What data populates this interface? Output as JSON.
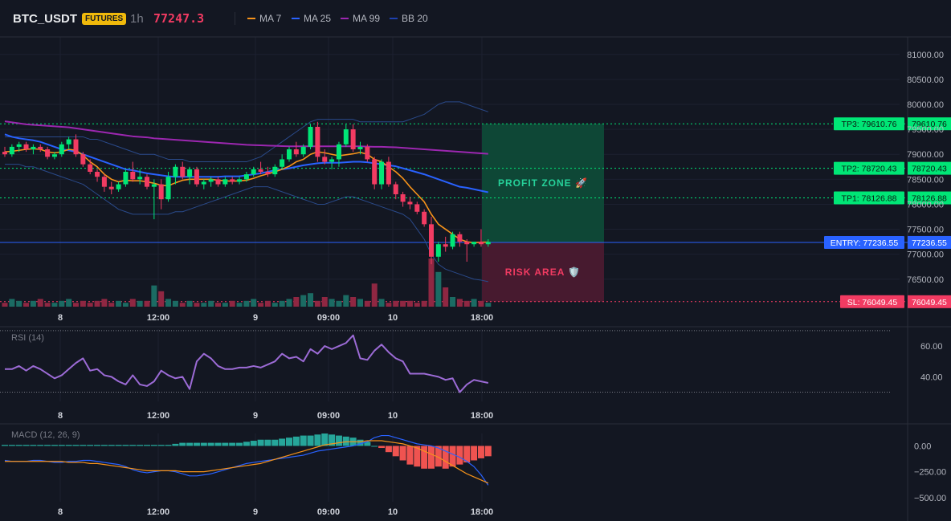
{
  "header": {
    "symbol": "BTC_USDT",
    "badge": "FUTURES",
    "timeframe": "1h",
    "last_price": "77247.3",
    "indicators": [
      {
        "label": "MA 7",
        "color": "#f7931a"
      },
      {
        "label": "MA 25",
        "color": "#2962ff"
      },
      {
        "label": "MA 99",
        "color": "#9c27b0"
      },
      {
        "label": "BB 20",
        "color": "#1e3a8a"
      }
    ]
  },
  "colors": {
    "background": "#131722",
    "bull": "#26a69a",
    "bull_bright": "#00e676",
    "bear": "#f23b62",
    "profit_zone": "#0f5c3f",
    "risk_zone": "#5c1a34",
    "entry": "#2962ff"
  },
  "chart_data": {
    "type": "candlestick",
    "price_axis": {
      "ticks": [
        "81000.00",
        "80500.00",
        "80000.00",
        "79500.00",
        "79000.00",
        "78500.00",
        "78000.00",
        "77500.00",
        "77000.00",
        "76500.00"
      ],
      "ylim": [
        75950,
        81350
      ]
    },
    "x_axis_labels": [
      "8",
      "12:00",
      "9",
      "09:00",
      "10",
      "18:00"
    ],
    "candles": [
      {
        "o": 79050,
        "h": 79150,
        "l": 78950,
        "c": 79000
      },
      {
        "o": 79000,
        "h": 79200,
        "l": 78950,
        "c": 79150
      },
      {
        "o": 79150,
        "h": 79250,
        "l": 79050,
        "c": 79200
      },
      {
        "o": 79200,
        "h": 79250,
        "l": 79050,
        "c": 79100
      },
      {
        "o": 79100,
        "h": 79200,
        "l": 79000,
        "c": 79150
      },
      {
        "o": 79150,
        "h": 79200,
        "l": 79050,
        "c": 79100
      },
      {
        "o": 79100,
        "h": 79150,
        "l": 78900,
        "c": 78950
      },
      {
        "o": 78950,
        "h": 79050,
        "l": 78900,
        "c": 79000
      },
      {
        "o": 79000,
        "h": 79250,
        "l": 78950,
        "c": 79200
      },
      {
        "o": 79200,
        "h": 79350,
        "l": 79100,
        "c": 79300
      },
      {
        "o": 79300,
        "h": 79400,
        "l": 78950,
        "c": 79000
      },
      {
        "o": 79000,
        "h": 79050,
        "l": 78750,
        "c": 78800
      },
      {
        "o": 78800,
        "h": 78900,
        "l": 78600,
        "c": 78650
      },
      {
        "o": 78650,
        "h": 78700,
        "l": 78450,
        "c": 78550
      },
      {
        "o": 78550,
        "h": 78600,
        "l": 78250,
        "c": 78350
      },
      {
        "o": 78350,
        "h": 78450,
        "l": 78200,
        "c": 78300
      },
      {
        "o": 78300,
        "h": 78450,
        "l": 78250,
        "c": 78400
      },
      {
        "o": 78400,
        "h": 78700,
        "l": 78350,
        "c": 78650
      },
      {
        "o": 78650,
        "h": 78850,
        "l": 78450,
        "c": 78500
      },
      {
        "o": 78500,
        "h": 78700,
        "l": 78400,
        "c": 78550
      },
      {
        "o": 78550,
        "h": 78600,
        "l": 78300,
        "c": 78350
      },
      {
        "o": 78350,
        "h": 78500,
        "l": 77700,
        "c": 78400
      },
      {
        "o": 78400,
        "h": 78500,
        "l": 77900,
        "c": 78100
      },
      {
        "o": 78100,
        "h": 78650,
        "l": 78050,
        "c": 78550
      },
      {
        "o": 78550,
        "h": 78800,
        "l": 78400,
        "c": 78750
      },
      {
        "o": 78750,
        "h": 78850,
        "l": 78500,
        "c": 78550
      },
      {
        "o": 78550,
        "h": 78750,
        "l": 78400,
        "c": 78700
      },
      {
        "o": 78700,
        "h": 78750,
        "l": 78350,
        "c": 78400
      },
      {
        "o": 78400,
        "h": 78500,
        "l": 78300,
        "c": 78450
      },
      {
        "o": 78450,
        "h": 78550,
        "l": 78350,
        "c": 78500
      },
      {
        "o": 78500,
        "h": 78550,
        "l": 78350,
        "c": 78400
      },
      {
        "o": 78400,
        "h": 78550,
        "l": 78350,
        "c": 78500
      },
      {
        "o": 78500,
        "h": 78550,
        "l": 78400,
        "c": 78450
      },
      {
        "o": 78450,
        "h": 78550,
        "l": 78400,
        "c": 78500
      },
      {
        "o": 78500,
        "h": 78650,
        "l": 78450,
        "c": 78600
      },
      {
        "o": 78600,
        "h": 78750,
        "l": 78550,
        "c": 78700
      },
      {
        "o": 78700,
        "h": 78850,
        "l": 78600,
        "c": 78650
      },
      {
        "o": 78650,
        "h": 78750,
        "l": 78550,
        "c": 78600
      },
      {
        "o": 78600,
        "h": 78800,
        "l": 78550,
        "c": 78750
      },
      {
        "o": 78750,
        "h": 79000,
        "l": 78700,
        "c": 78900
      },
      {
        "o": 78900,
        "h": 79150,
        "l": 78850,
        "c": 79100
      },
      {
        "o": 79100,
        "h": 79250,
        "l": 78950,
        "c": 79000
      },
      {
        "o": 79000,
        "h": 79200,
        "l": 78950,
        "c": 79150
      },
      {
        "o": 79150,
        "h": 79600,
        "l": 79100,
        "c": 79550
      },
      {
        "o": 79550,
        "h": 79650,
        "l": 78850,
        "c": 78950
      },
      {
        "o": 78950,
        "h": 79100,
        "l": 78800,
        "c": 78850
      },
      {
        "o": 78850,
        "h": 78950,
        "l": 78700,
        "c": 78900
      },
      {
        "o": 78900,
        "h": 79250,
        "l": 78750,
        "c": 79200
      },
      {
        "o": 79200,
        "h": 79600,
        "l": 79150,
        "c": 79500
      },
      {
        "o": 79500,
        "h": 79600,
        "l": 79050,
        "c": 79100
      },
      {
        "o": 79100,
        "h": 79250,
        "l": 79000,
        "c": 79150
      },
      {
        "o": 79150,
        "h": 79200,
        "l": 78850,
        "c": 78900
      },
      {
        "o": 78900,
        "h": 78950,
        "l": 78300,
        "c": 78400
      },
      {
        "o": 78400,
        "h": 78900,
        "l": 78300,
        "c": 78850
      },
      {
        "o": 78850,
        "h": 78950,
        "l": 78350,
        "c": 78400
      },
      {
        "o": 78400,
        "h": 78450,
        "l": 78100,
        "c": 78200
      },
      {
        "o": 78200,
        "h": 78250,
        "l": 77950,
        "c": 78050
      },
      {
        "o": 78050,
        "h": 78150,
        "l": 77900,
        "c": 78000
      },
      {
        "o": 78000,
        "h": 78050,
        "l": 77800,
        "c": 77850
      },
      {
        "o": 77850,
        "h": 77900,
        "l": 77550,
        "c": 77600
      },
      {
        "o": 77600,
        "h": 77750,
        "l": 76800,
        "c": 76950
      },
      {
        "o": 76950,
        "h": 77250,
        "l": 76850,
        "c": 77200
      },
      {
        "o": 77200,
        "h": 77350,
        "l": 77050,
        "c": 77150
      },
      {
        "o": 77150,
        "h": 77450,
        "l": 77100,
        "c": 77400
      },
      {
        "o": 77400,
        "h": 77450,
        "l": 77150,
        "c": 77250
      },
      {
        "o": 77250,
        "h": 77300,
        "l": 76850,
        "c": 77200
      },
      {
        "o": 77200,
        "h": 77250,
        "l": 77150,
        "c": 77250
      },
      {
        "o": 77250,
        "h": 77500,
        "l": 77150,
        "c": 77200
      },
      {
        "o": 77200,
        "h": 77300,
        "l": 77150,
        "c": 77247
      }
    ],
    "volumes": [
      2,
      4,
      3,
      2,
      3,
      4,
      2,
      2,
      3,
      4,
      2,
      3,
      2,
      3,
      4,
      2,
      3,
      2,
      4,
      3,
      3,
      11,
      8,
      4,
      3,
      2,
      3,
      2,
      2,
      3,
      2,
      2,
      3,
      2,
      3,
      4,
      2,
      3,
      2,
      3,
      4,
      5,
      6,
      7,
      3,
      5,
      4,
      3,
      6,
      5,
      4,
      3,
      12,
      4,
      2,
      3,
      3,
      3,
      2,
      3,
      25,
      18,
      10,
      5,
      4,
      3,
      4,
      3,
      2
    ],
    "ma7": [
      79050,
      79060,
      79080,
      79100,
      79110,
      79100,
      79050,
      79030,
      79050,
      79100,
      79080,
      78980,
      78850,
      78750,
      78600,
      78500,
      78450,
      78480,
      78470,
      78470,
      78450,
      78420,
      78380,
      78370,
      78430,
      78480,
      78500,
      78500,
      78500,
      78500,
      78480,
      78470,
      78460,
      78470,
      78480,
      78520,
      78570,
      78610,
      78650,
      78700,
      78760,
      78850,
      78900,
      79000,
      79050,
      79030,
      79000,
      78970,
      78990,
      79010,
      79040,
      79000,
      78900,
      78850,
      78750,
      78650,
      78520,
      78350,
      78200,
      78050,
      77800,
      77600,
      77500,
      77400,
      77300,
      77250,
      77230,
      77240,
      77240
    ],
    "ma25": [
      79400,
      79350,
      79320,
      79300,
      79280,
      79250,
      79200,
      79150,
      79100,
      79080,
      79050,
      79000,
      78950,
      78900,
      78850,
      78800,
      78750,
      78700,
      78680,
      78650,
      78620,
      78600,
      78580,
      78560,
      78550,
      78550,
      78550,
      78550,
      78550,
      78550,
      78550,
      78560,
      78560,
      78560,
      78580,
      78600,
      78620,
      78650,
      78680,
      78700,
      78720,
      78750,
      78780,
      78800,
      78820,
      78830,
      78830,
      78830,
      78840,
      78850,
      78850,
      78840,
      78820,
      78800,
      78780,
      78760,
      78720,
      78680,
      78640,
      78600,
      78550,
      78500,
      78450,
      78400,
      78350,
      78330,
      78300,
      78270,
      78240
    ],
    "ma99": [
      79660,
      79640,
      79620,
      79600,
      79590,
      79580,
      79570,
      79560,
      79550,
      79540,
      79520,
      79500,
      79480,
      79460,
      79440,
      79420,
      79400,
      79380,
      79360,
      79350,
      79340,
      79320,
      79310,
      79300,
      79290,
      79280,
      79270,
      79260,
      79250,
      79240,
      79230,
      79220,
      79210,
      79200,
      79190,
      79185,
      79180,
      79175,
      79170,
      79165,
      79160,
      79160,
      79160,
      79160,
      79160,
      79160,
      79160,
      79160,
      79160,
      79160,
      79160,
      79155,
      79150,
      79150,
      79145,
      79140,
      79130,
      79120,
      79110,
      79100,
      79090,
      79080,
      79070,
      79060,
      79050,
      79040,
      79030,
      79020,
      79010
    ],
    "bb_upper": [
      79350,
      79350,
      79350,
      79350,
      79350,
      79350,
      79350,
      79350,
      79350,
      79350,
      79350,
      79350,
      79300,
      79300,
      79250,
      79200,
      79150,
      79100,
      79050,
      79000,
      79000,
      79000,
      78950,
      78900,
      78900,
      78900,
      78850,
      78850,
      78850,
      78850,
      78850,
      78850,
      78850,
      78850,
      78850,
      78900,
      78950,
      79050,
      79150,
      79250,
      79350,
      79450,
      79550,
      79650,
      79700,
      79700,
      79700,
      79700,
      79700,
      79700,
      79650,
      79650,
      79650,
      79650,
      79650,
      79650,
      79650,
      79700,
      79750,
      79800,
      79900,
      80000,
      80050,
      80050,
      80050,
      80000,
      79950,
      79900,
      79850
    ],
    "bb_lower": [
      78800,
      78800,
      78800,
      78750,
      78750,
      78700,
      78650,
      78600,
      78550,
      78500,
      78450,
      78400,
      78300,
      78200,
      78100,
      78000,
      77900,
      77850,
      77800,
      77800,
      77800,
      77800,
      77800,
      77800,
      77850,
      77850,
      77900,
      77950,
      78000,
      78050,
      78100,
      78150,
      78200,
      78250,
      78300,
      78350,
      78350,
      78350,
      78300,
      78250,
      78200,
      78150,
      78100,
      78050,
      78000,
      78000,
      78050,
      78100,
      78150,
      78150,
      78100,
      78050,
      78000,
      77950,
      77900,
      77850,
      77800,
      77700,
      77500,
      77300,
      77000,
      76800,
      76700,
      76650,
      76600,
      76550,
      76500,
      76480,
      76450
    ],
    "trade_setup": {
      "tp3": {
        "label": "TP3: 79610.76",
        "value": 79610.76,
        "axis": "79610.76"
      },
      "tp2": {
        "label": "TP2: 78720.43",
        "value": 78720.43,
        "axis": "78720.43"
      },
      "tp1": {
        "label": "TP1: 78126.88",
        "value": 78126.88,
        "axis": "78126.88"
      },
      "entry": {
        "label": "ENTRY: 77236.55",
        "value": 77236.55,
        "axis": "77236.55"
      },
      "sl": {
        "label": "SL: 76049.45",
        "value": 76049.45,
        "axis": "76049.45"
      },
      "profit_label": "PROFIT ZONE 🚀",
      "risk_label": "RISK AREA 🛡️"
    },
    "rsi": {
      "title": "RSI (14)",
      "ticks": [
        "60.00",
        "40.00"
      ],
      "ylim": [
        24,
        71
      ],
      "upper": 70,
      "lower": 30,
      "values": [
        45,
        45,
        47,
        44,
        47,
        45,
        42,
        39,
        41,
        45,
        49,
        52,
        44,
        45,
        41,
        40,
        37,
        35,
        41,
        35,
        34,
        37,
        44,
        41,
        39,
        40,
        32,
        50,
        55,
        52,
        47,
        45,
        45,
        46,
        46,
        47,
        46,
        48,
        50,
        55,
        52,
        53,
        50,
        58,
        55,
        60,
        58,
        60,
        62,
        67,
        52,
        51,
        57,
        61,
        56,
        52,
        50,
        42,
        42,
        42,
        41,
        40,
        38,
        39,
        30,
        35,
        38,
        37,
        36
      ],
      "color": "#9c6bd6"
    },
    "macd": {
      "title": "MACD (12, 26, 9)",
      "ticks": [
        "0.00",
        "−250.00",
        "−500.00"
      ],
      "ylim": [
        -540,
        120
      ],
      "histogram": [
        10,
        10,
        10,
        10,
        10,
        10,
        10,
        10,
        10,
        10,
        10,
        10,
        10,
        10,
        10,
        10,
        10,
        10,
        10,
        10,
        10,
        10,
        10,
        10,
        20,
        30,
        30,
        30,
        30,
        30,
        30,
        30,
        30,
        30,
        40,
        50,
        60,
        60,
        60,
        70,
        80,
        90,
        100,
        100,
        110,
        120,
        110,
        100,
        90,
        80,
        60,
        40,
        0,
        -20,
        -60,
        -100,
        -140,
        -180,
        -200,
        -220,
        -220,
        -200,
        -220,
        -200,
        -180,
        -160,
        -140,
        -120,
        -100
      ],
      "macd_line": [
        -140,
        -150,
        -150,
        -150,
        -140,
        -140,
        -150,
        -160,
        -160,
        -150,
        -150,
        -140,
        -140,
        -150,
        -160,
        -170,
        -180,
        -200,
        -230,
        -250,
        -260,
        -250,
        -240,
        -240,
        -250,
        -270,
        -290,
        -290,
        -280,
        -270,
        -250,
        -230,
        -210,
        -190,
        -170,
        -160,
        -150,
        -140,
        -130,
        -120,
        -110,
        -100,
        -90,
        -70,
        -50,
        -40,
        -30,
        -20,
        -10,
        0,
        20,
        40,
        80,
        100,
        100,
        80,
        60,
        40,
        20,
        10,
        0,
        -20,
        -50,
        -80,
        -110,
        -150,
        -200,
        -280,
        -380
      ],
      "signal_line": [
        -150,
        -150,
        -150,
        -150,
        -150,
        -150,
        -150,
        -150,
        -150,
        -160,
        -160,
        -160,
        -170,
        -170,
        -180,
        -190,
        -200,
        -210,
        -220,
        -230,
        -240,
        -240,
        -240,
        -240,
        -240,
        -250,
        -250,
        -250,
        -250,
        -240,
        -230,
        -220,
        -210,
        -200,
        -190,
        -180,
        -170,
        -150,
        -130,
        -110,
        -90,
        -70,
        -50,
        -30,
        -10,
        10,
        20,
        30,
        40,
        40,
        40,
        50,
        50,
        50,
        40,
        30,
        20,
        0,
        -20,
        -50,
        -80,
        -110,
        -150,
        -190,
        -230,
        -270,
        -300,
        -330,
        -360
      ]
    }
  }
}
